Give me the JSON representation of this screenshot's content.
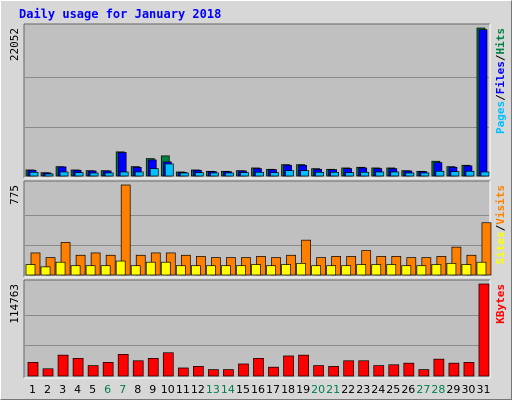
{
  "chart_data": {
    "title": "Daily usage for January 2018",
    "type": "bar",
    "categories": [
      "1",
      "2",
      "3",
      "4",
      "5",
      "6",
      "7",
      "8",
      "9",
      "10",
      "11",
      "12",
      "13",
      "14",
      "15",
      "16",
      "17",
      "18",
      "19",
      "20",
      "21",
      "22",
      "23",
      "24",
      "25",
      "26",
      "27",
      "28",
      "29",
      "30",
      "31"
    ],
    "weekend_days": [
      "6",
      "7",
      "13",
      "14",
      "20",
      "21",
      "27",
      "28"
    ],
    "panels": [
      {
        "name": "hits",
        "axis_max_label": "22052",
        "axis_max": 22052,
        "side_labels": [
          "Pages",
          "/",
          "Files",
          "/",
          "Hits"
        ],
        "series": [
          {
            "name": "Hits",
            "color": "#008040",
            "values": [
              900,
              500,
              1400,
              900,
              800,
              800,
              3600,
              1400,
              2600,
              3000,
              600,
              900,
              700,
              700,
              800,
              1200,
              1000,
              1700,
              1700,
              1100,
              1000,
              1200,
              1300,
              1200,
              1200,
              800,
              700,
              2200,
              1400,
              1600,
              22052
            ]
          },
          {
            "name": "Files",
            "color": "#0000ff",
            "values": [
              850,
              450,
              1350,
              850,
              750,
              750,
              3500,
              1300,
              2400,
              2100,
              550,
              850,
              650,
              650,
              750,
              1100,
              950,
              1600,
              1600,
              1000,
              950,
              1100,
              1200,
              1100,
              1100,
              750,
              650,
              2000,
              1300,
              1500,
              21800
            ]
          },
          {
            "name": "Pages",
            "color": "#00c0ff",
            "values": [
              550,
              300,
              600,
              500,
              450,
              450,
              600,
              600,
              1100,
              1800,
              450,
              500,
              450,
              450,
              500,
              550,
              500,
              800,
              800,
              550,
              550,
              500,
              550,
              600,
              600,
              450,
              450,
              700,
              650,
              700,
              600
            ]
          }
        ]
      },
      {
        "name": "visits",
        "axis_max_label": "775",
        "axis_max": 775,
        "side_labels": [
          "Sites",
          "/",
          "Visits"
        ],
        "series": [
          {
            "name": "Visits",
            "color": "#ff8000",
            "values": [
              190,
              150,
              280,
              170,
              190,
              170,
              775,
              170,
              190,
              190,
              170,
              160,
              150,
              150,
              150,
              160,
              150,
              170,
              300,
              150,
              160,
              160,
              210,
              160,
              160,
              150,
              150,
              160,
              240,
              170,
              450
            ]
          },
          {
            "name": "Sites",
            "color": "#ffff00",
            "values": [
              90,
              70,
              110,
              80,
              80,
              80,
              120,
              80,
              110,
              110,
              80,
              80,
              80,
              80,
              80,
              90,
              80,
              90,
              100,
              80,
              80,
              80,
              90,
              90,
              90,
              80,
              80,
              90,
              100,
              90,
              110
            ]
          }
        ]
      },
      {
        "name": "kbytes",
        "axis_max_label": "114763",
        "axis_max": 114763,
        "side_labels": [
          "KBytes"
        ],
        "series": [
          {
            "name": "KBytes",
            "color": "#ff0000",
            "values": [
              17000,
              9000,
              26000,
              22000,
              13000,
              17000,
              27000,
              19000,
              22000,
              29000,
              10000,
              12000,
              8000,
              8000,
              15000,
              22000,
              11000,
              25000,
              26000,
              13000,
              12000,
              19000,
              19000,
              13000,
              14000,
              16000,
              8000,
              21000,
              16000,
              17000,
              114763
            ]
          }
        ]
      }
    ],
    "colors": {
      "background": "#d7d7d7",
      "plot_background": "#c0c0c0",
      "weekend_label": "#00804c",
      "day_label": "#000000",
      "title": "#0000ff"
    }
  }
}
